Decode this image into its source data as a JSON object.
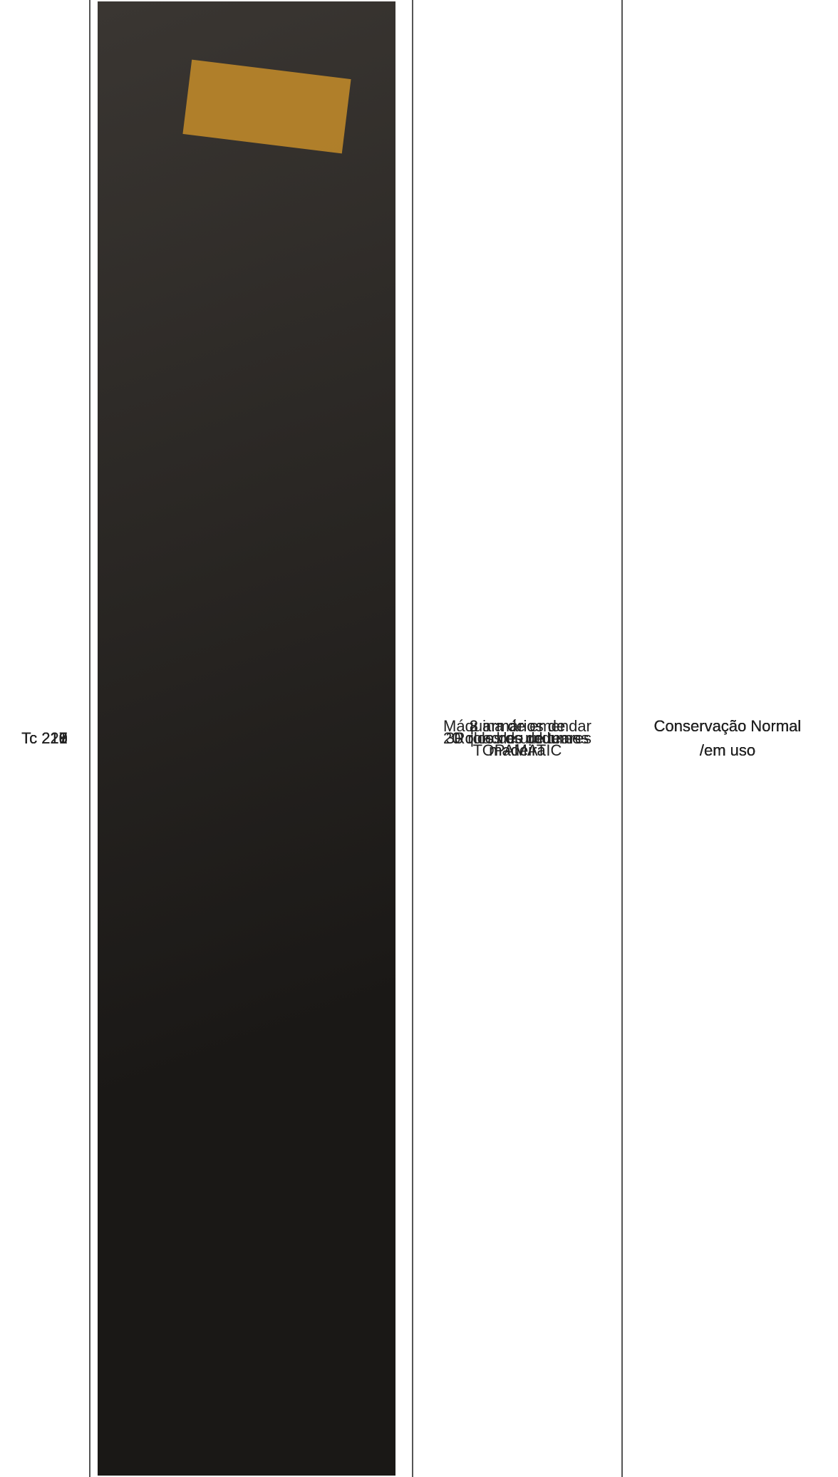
{
  "rows": [
    {
      "code": "Tc 216",
      "description": [
        "2 armários de",
        "madeira"
      ],
      "condition": [
        "Conservação Normal",
        "/em uso"
      ]
    },
    {
      "code": "Tc 217",
      "description": [
        "20 quadros de teares"
      ],
      "condition": [
        "Conservação Normal",
        "/em uso"
      ]
    },
    {
      "code": "Tc 218",
      "description": [
        "30 rolos de urdumes"
      ],
      "condition": [
        "Conservação Normal",
        "/em uso"
      ]
    },
    {
      "code": "Tc 219",
      "description": [
        "Rolos de urdumes"
      ],
      "condition": [
        "Conservação Normal",
        "/em uso"
      ]
    },
    {
      "code": "Tc 220",
      "description": [
        "8 armários de",
        "madeira"
      ],
      "condition": [
        "Conservação Normal",
        "/em uso"
      ]
    },
    {
      "code": "Tc 221",
      "description": [
        "Máquina de emendar",
        "TOPAMATIC"
      ],
      "condition": [
        "Conservação Normal",
        "/em uso"
      ]
    }
  ]
}
